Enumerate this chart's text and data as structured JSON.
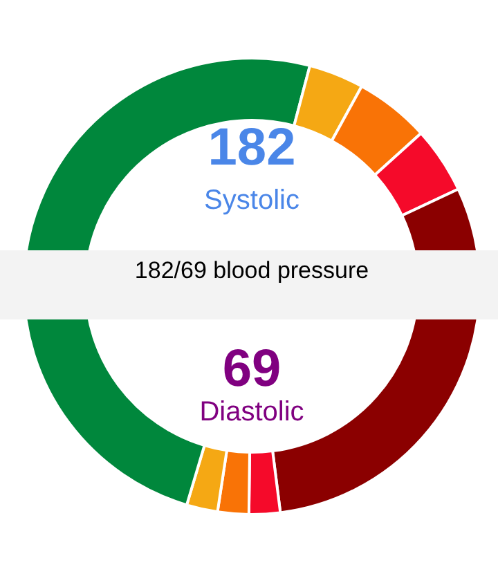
{
  "chart_data": {
    "type": "donut",
    "categories": [
      null,
      null,
      null,
      null,
      null,
      null,
      null,
      null,
      null,
      null
    ],
    "values": [
      29.1,
      3.9,
      5.3,
      4.7,
      7.1,
      22.9,
      2.2,
      2.2,
      2.2,
      20.4
    ],
    "colors": [
      "#00873c",
      "#f5a814",
      "#f97306",
      "#f50a2a",
      "#8b0000",
      "#8b0000",
      "#f50a2a",
      "#f97306",
      "#f5a814",
      "#00873c"
    ],
    "title": "182/69 blood pressure",
    "annotations": [
      "182",
      "Systolic",
      "69",
      "Diastolic"
    ]
  }
}
